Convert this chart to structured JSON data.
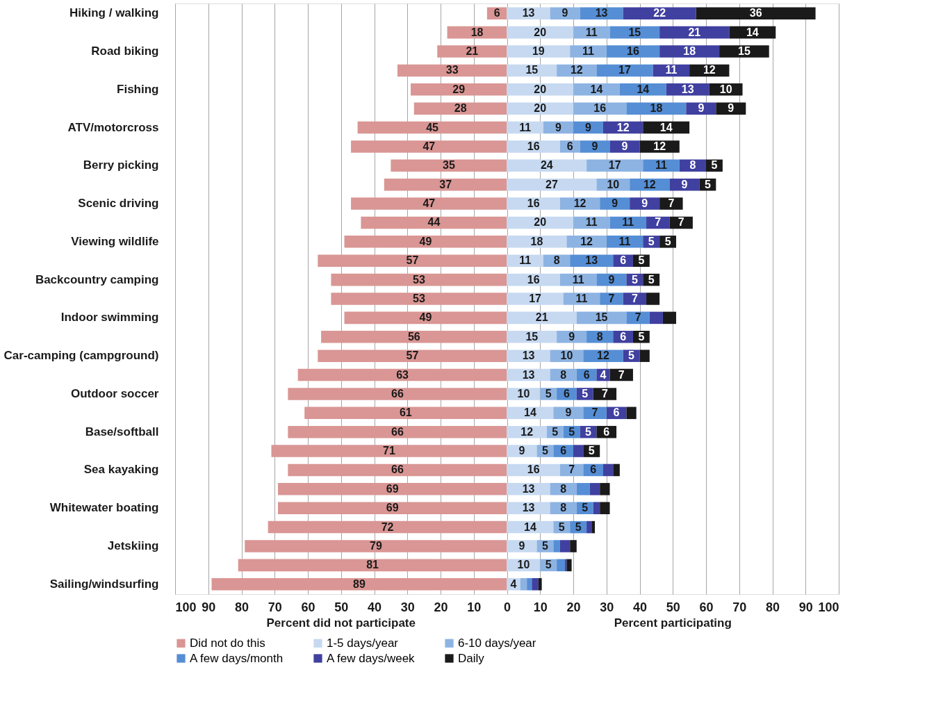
{
  "chart_data": {
    "type": "bar",
    "orientation": "horizontal",
    "categories": [
      "Hiking / walking",
      null,
      "Road biking",
      null,
      "Fishing",
      null,
      "ATV/motorcross",
      null,
      "Berry picking",
      null,
      "Scenic driving",
      null,
      "Viewing wildlife",
      null,
      "Backcountry camping",
      null,
      "Indoor swimming",
      null,
      "Car-camping (campground)",
      null,
      "Outdoor soccer",
      null,
      "Base/softball",
      null,
      "Sea kayaking",
      null,
      "Whitewater boating",
      null,
      "Jetskiing",
      null,
      "Sailing/windsurfing"
    ],
    "series": [
      {
        "name": "Did not do this",
        "color": "#d99694",
        "base": [
          -6,
          -18,
          -21,
          -33,
          -29,
          -28,
          -45,
          -47,
          -35,
          -37,
          -47,
          -44,
          -49,
          -57,
          -53,
          -53,
          -49,
          -56,
          -57,
          -63,
          -66,
          -61,
          -66,
          -71,
          -66,
          -69,
          -69,
          -72,
          -79,
          -81,
          -89
        ],
        "values": [
          6,
          18,
          21,
          33,
          29,
          28,
          45,
          47,
          35,
          37,
          47,
          44,
          49,
          57,
          53,
          53,
          49,
          56,
          57,
          63,
          66,
          61,
          66,
          71,
          66,
          69,
          69,
          72,
          79,
          81,
          89
        ],
        "value_labels": [
          "6",
          "18",
          "21",
          "33",
          "29",
          "28",
          "45",
          "47",
          "35",
          "37",
          "47",
          "44",
          "49",
          "57",
          "53",
          "53",
          "49",
          "56",
          "57",
          "63",
          "66",
          "61",
          "66",
          "71",
          "66",
          "69",
          "69",
          "72",
          "79",
          "81",
          "89"
        ]
      },
      {
        "name": "1-5 days/year",
        "color": "#c6d9f1",
        "base": [
          0,
          0,
          0,
          0,
          0,
          0,
          0,
          0,
          0,
          0,
          0,
          0,
          0,
          0,
          0,
          0,
          0,
          0,
          0,
          0,
          0,
          0,
          0,
          0,
          0,
          0,
          0,
          0,
          0,
          0,
          0
        ],
        "values": [
          13,
          20,
          19,
          15,
          20,
          20,
          11,
          16,
          24,
          27,
          16,
          20,
          18,
          11,
          16,
          17,
          21,
          15,
          13,
          13,
          10,
          14,
          12,
          9,
          16,
          13,
          13,
          14,
          9,
          10,
          4
        ],
        "value_labels": [
          "13",
          "20",
          "19",
          "15",
          "20",
          "20",
          "11",
          "16",
          "24",
          "27",
          "16",
          "20",
          "18",
          "11",
          "16",
          "17",
          "21",
          "15",
          "13",
          "13",
          "10",
          "14",
          "12",
          "9",
          "16",
          "13",
          "13",
          "14",
          "9",
          "10",
          "4"
        ]
      },
      {
        "name": "6-10 days/year",
        "color": "#8db3e2",
        "base": [
          13,
          20,
          19,
          15,
          20,
          20,
          11,
          16,
          24,
          27,
          16,
          20,
          18,
          11,
          16,
          17,
          21,
          15,
          13,
          13,
          10,
          14,
          12,
          9,
          16,
          13,
          13,
          14,
          9,
          10,
          4
        ],
        "values": [
          9,
          11,
          11,
          12,
          14,
          16,
          9,
          6,
          17,
          10,
          12,
          11,
          12,
          8,
          11,
          11,
          15,
          9,
          10,
          8,
          5,
          9,
          5,
          5,
          7,
          8,
          8,
          5,
          5,
          5,
          2
        ],
        "value_labels": [
          "9",
          "11",
          "11",
          "12",
          "14",
          "16",
          "9",
          "6",
          "17",
          "10",
          "12",
          "11",
          "12",
          "8",
          "11",
          "11",
          "15",
          "9",
          "10",
          "8",
          "5",
          "9",
          "5",
          "5",
          "7",
          "8",
          "8",
          "5",
          "5",
          "5",
          null
        ]
      },
      {
        "name": "A few days/month",
        "color": "#558ed5",
        "base": [
          22,
          31,
          30,
          27,
          34,
          36,
          20,
          22,
          41,
          37,
          28,
          31,
          30,
          19,
          27,
          28,
          36,
          24,
          23,
          21,
          15,
          23,
          17,
          14,
          23,
          21,
          21,
          19,
          14,
          15,
          6
        ],
        "values": [
          13,
          15,
          16,
          17,
          14,
          18,
          9,
          9,
          11,
          12,
          9,
          11,
          11,
          13,
          9,
          7,
          7,
          8,
          12,
          6,
          6,
          7,
          5,
          6,
          6,
          4,
          5,
          5,
          2,
          2.5,
          1.5
        ],
        "value_labels": [
          "13",
          "15",
          "16",
          "17",
          "14",
          "18",
          "9",
          "9",
          "11",
          "12",
          "9",
          "11",
          "11",
          "13",
          "9",
          "7",
          "7",
          "8",
          "12",
          "6",
          "6",
          "7",
          "5",
          "6",
          "6",
          null,
          "5",
          "5",
          null,
          null,
          null
        ]
      },
      {
        "name": "A few days/week",
        "color": "#4040a0",
        "base": [
          35,
          46,
          46,
          44,
          48,
          54,
          29,
          31,
          52,
          49,
          37,
          42,
          41,
          32,
          36,
          35,
          43,
          32,
          35,
          27,
          21,
          30,
          22,
          20,
          29,
          25,
          26,
          24,
          16,
          17.5,
          7.5
        ],
        "values": [
          22,
          21,
          18,
          11,
          13,
          9,
          12,
          9,
          8,
          9,
          9,
          7,
          5,
          6,
          5,
          7,
          4,
          6,
          5,
          4,
          5,
          6,
          5,
          3,
          3,
          3,
          2,
          1.5,
          3,
          0.5,
          2
        ],
        "value_labels": [
          "22",
          "21",
          "18",
          "11",
          "13",
          "9",
          "12",
          "9",
          "8",
          "9",
          "9",
          "7",
          "5",
          "6",
          "5",
          "7",
          null,
          "6",
          "5",
          "4",
          "5",
          "6",
          "5",
          null,
          null,
          null,
          null,
          null,
          null,
          null,
          null
        ]
      },
      {
        "name": "Daily",
        "color": "#1a1a1a",
        "base": [
          57,
          67,
          64,
          55,
          61,
          63,
          41,
          40,
          60,
          58,
          46,
          49,
          46,
          38,
          41,
          42,
          47,
          38,
          40,
          31,
          26,
          36,
          27,
          23,
          32,
          28,
          28,
          25.5,
          19,
          18,
          9.5
        ],
        "values": [
          36,
          14,
          15,
          12,
          10,
          9,
          14,
          12,
          5,
          5,
          7,
          7,
          5,
          5,
          5,
          4,
          4,
          5,
          3,
          7,
          7,
          3,
          6,
          5,
          2,
          3,
          3,
          1,
          2,
          1.5,
          1
        ],
        "value_labels": [
          "36",
          "14",
          "15",
          "12",
          "10",
          "9",
          "14",
          "12",
          "5",
          "5",
          "7",
          "7",
          "5",
          "5",
          "5",
          null,
          null,
          "5",
          null,
          "7",
          "7",
          null,
          "6",
          "5",
          null,
          null,
          null,
          null,
          null,
          null,
          null
        ]
      }
    ],
    "xlim": [
      -100,
      100
    ],
    "xticks": [
      {
        "value": -100,
        "label": "100"
      },
      {
        "value": -90,
        "label": "90"
      },
      {
        "value": -80,
        "label": "80"
      },
      {
        "value": -70,
        "label": "70"
      },
      {
        "value": -60,
        "label": "60"
      },
      {
        "value": -50,
        "label": "50"
      },
      {
        "value": -40,
        "label": "40"
      },
      {
        "value": -30,
        "label": "30"
      },
      {
        "value": -20,
        "label": "20"
      },
      {
        "value": -10,
        "label": "10"
      },
      0,
      10,
      20,
      30,
      40,
      50,
      60,
      70,
      80,
      90,
      100
    ],
    "xlabel": "Percent participating",
    "annotations": [
      "Percent did not participate"
    ],
    "grid": "x",
    "legend": "bottom"
  }
}
